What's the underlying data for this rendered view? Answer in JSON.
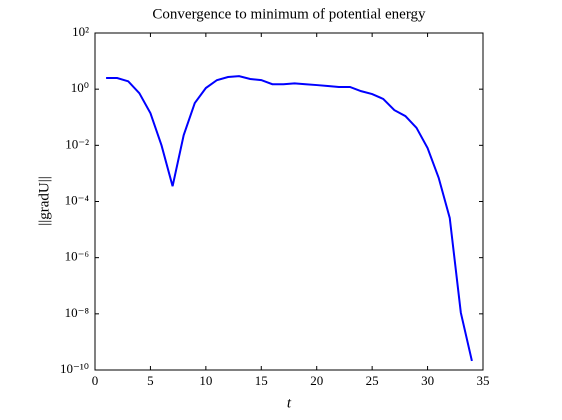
{
  "chart_data": {
    "type": "line",
    "title": "Convergence to minimum of potential energy",
    "xlabel": "t",
    "ylabel": "||gradU||",
    "x": [
      1,
      2,
      3,
      4,
      5,
      6,
      7,
      8,
      9,
      10,
      11,
      12,
      13,
      14,
      15,
      16,
      17,
      18,
      19,
      20,
      21,
      22,
      23,
      24,
      25,
      26,
      27,
      28,
      29,
      30,
      31,
      32,
      33,
      34
    ],
    "values": [
      2.5,
      2.5,
      1.9,
      0.72,
      0.14,
      0.01,
      0.00035,
      0.023,
      0.32,
      1.1,
      2.1,
      2.7,
      2.9,
      2.3,
      2.1,
      1.5,
      1.5,
      1.6,
      1.5,
      1.4,
      1.3,
      1.2,
      1.2,
      0.85,
      0.67,
      0.45,
      0.18,
      0.11,
      0.042,
      0.008,
      0.0007,
      2.6e-05,
      1.1e-08,
      2.1e-10
    ],
    "color": "#0000ff",
    "xlim": [
      0,
      35
    ],
    "xticks": [
      0,
      5,
      10,
      15,
      20,
      25,
      30,
      35
    ],
    "ylim": [
      1e-10,
      100
    ],
    "yscale": "log",
    "yticks": [
      {
        "value": 1e-10,
        "label": "10⁻¹⁰"
      },
      {
        "value": 1e-08,
        "label": "10⁻⁸"
      },
      {
        "value": 1e-06,
        "label": "10⁻⁶"
      },
      {
        "value": 0.0001,
        "label": "10⁻⁴"
      },
      {
        "value": 0.01,
        "label": "10⁻²"
      },
      {
        "value": 1,
        "label": "10⁰"
      },
      {
        "value": 100,
        "label": "10²"
      }
    ]
  }
}
